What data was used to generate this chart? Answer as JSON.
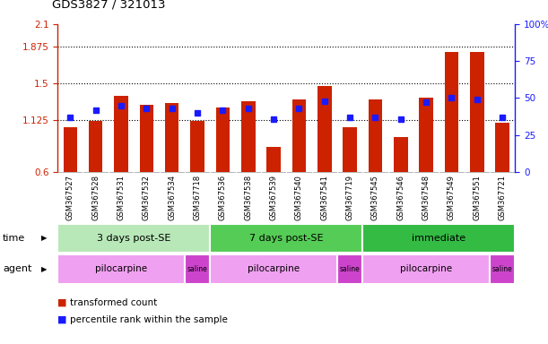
{
  "title": "GDS3827 / 321013",
  "samples": [
    "GSM367527",
    "GSM367528",
    "GSM367531",
    "GSM367532",
    "GSM367534",
    "GSM367718",
    "GSM367536",
    "GSM367538",
    "GSM367539",
    "GSM367540",
    "GSM367541",
    "GSM367719",
    "GSM367545",
    "GSM367546",
    "GSM367548",
    "GSM367549",
    "GSM367551",
    "GSM367721"
  ],
  "transformed_count": [
    1.05,
    1.12,
    1.37,
    1.28,
    1.3,
    1.12,
    1.25,
    1.32,
    0.85,
    1.34,
    1.47,
    1.05,
    1.34,
    0.95,
    1.35,
    1.82,
    1.82,
    1.1
  ],
  "percentile_rank": [
    37,
    42,
    45,
    43,
    43,
    40,
    42,
    43,
    36,
    43,
    48,
    37,
    37,
    36,
    47,
    50,
    49,
    37
  ],
  "bar_color": "#cc2200",
  "dot_color": "#1a1aff",
  "ymin": 0.6,
  "ymax": 2.1,
  "yticks": [
    0.6,
    1.125,
    1.5,
    1.875,
    2.1
  ],
  "ytick_labels": [
    "0.6",
    "1.125",
    "1.5",
    "1.875",
    "2.1"
  ],
  "right_yticks": [
    0,
    25,
    50,
    75,
    100
  ],
  "right_ytick_labels": [
    "0",
    "25",
    "50",
    "75",
    "100%"
  ],
  "dotted_lines": [
    1.125,
    1.5,
    1.875
  ],
  "time_groups": [
    {
      "label": "3 days post-SE",
      "start": 0,
      "end": 6,
      "color": "#b8e8b8"
    },
    {
      "label": "7 days post-SE",
      "start": 6,
      "end": 12,
      "color": "#55cc55"
    },
    {
      "label": "immediate",
      "start": 12,
      "end": 18,
      "color": "#33bb44"
    }
  ],
  "agent_groups": [
    {
      "label": "pilocarpine",
      "start": 0,
      "end": 5,
      "color": "#f0a0f0"
    },
    {
      "label": "saline",
      "start": 5,
      "end": 6,
      "color": "#cc44cc"
    },
    {
      "label": "pilocarpine",
      "start": 6,
      "end": 11,
      "color": "#f0a0f0"
    },
    {
      "label": "saline",
      "start": 11,
      "end": 12,
      "color": "#cc44cc"
    },
    {
      "label": "pilocarpine",
      "start": 12,
      "end": 17,
      "color": "#f0a0f0"
    },
    {
      "label": "saline",
      "start": 17,
      "end": 18,
      "color": "#cc44cc"
    }
  ],
  "bg_color": "#ffffff",
  "sample_bg_color": "#dddddd",
  "bar_width": 0.55
}
